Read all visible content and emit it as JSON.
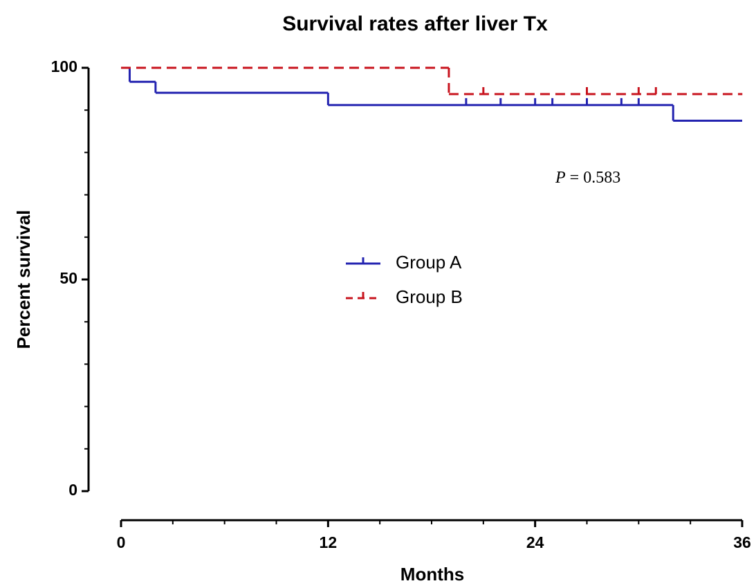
{
  "chart_data": {
    "type": "step",
    "title": "Survival rates after liver Tx",
    "xlabel": "Months",
    "ylabel": "Percent survival",
    "xlim": [
      0,
      36
    ],
    "xticks": [
      0,
      12,
      24,
      36
    ],
    "ylim": [
      0,
      100
    ],
    "yticks": [
      0,
      50,
      100
    ],
    "annotation": {
      "italic": "P",
      "text": " = 0.583"
    },
    "series": [
      {
        "name": "Group A",
        "color": "#2323b0",
        "dash": false,
        "x": [
          0,
          0.5,
          2,
          12,
          32,
          36
        ],
        "values": [
          100,
          96.7,
          94.1,
          91.2,
          87.5,
          87.5
        ],
        "censored": [
          20,
          22,
          24,
          25,
          27,
          29,
          30
        ]
      },
      {
        "name": "Group B",
        "color": "#c8141e",
        "dash": true,
        "x": [
          0,
          19,
          36
        ],
        "values": [
          100,
          93.8,
          93.8
        ],
        "censored": [
          21,
          27,
          30,
          31
        ]
      }
    ]
  }
}
